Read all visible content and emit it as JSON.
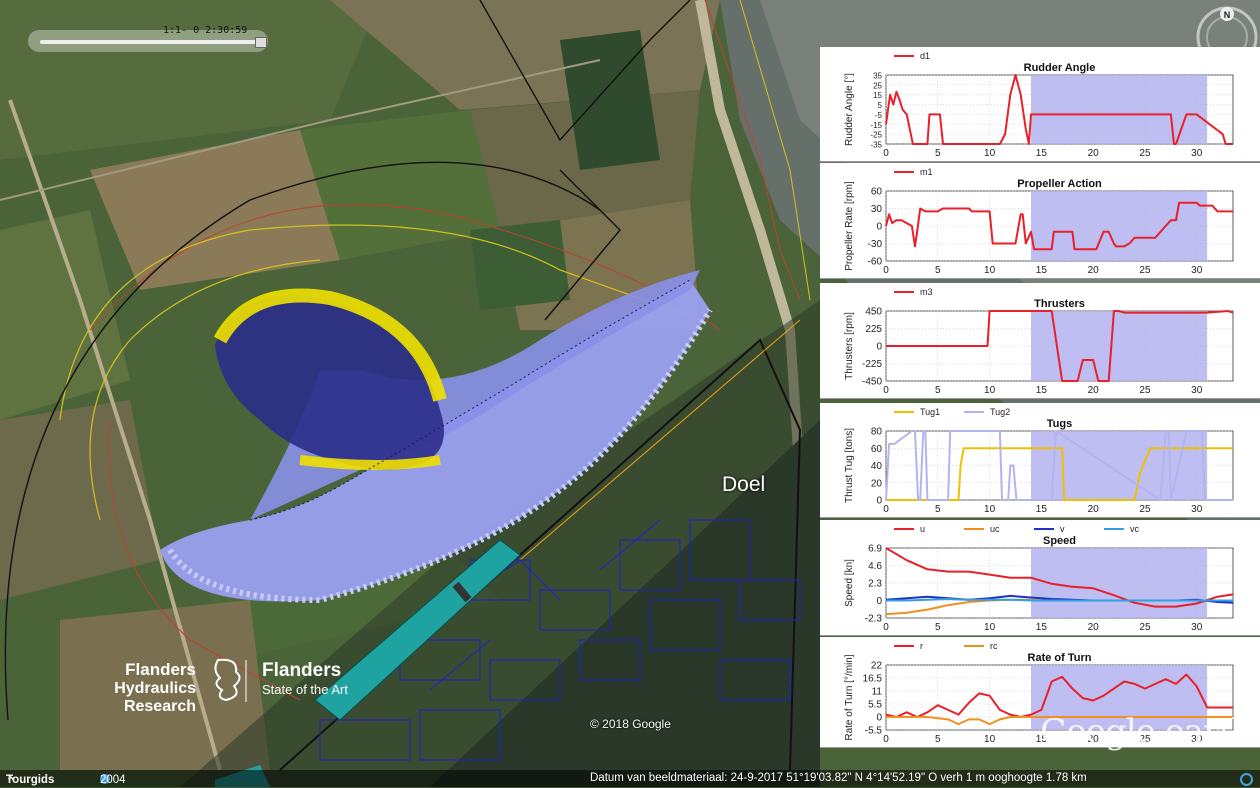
{
  "timeslider": {
    "label": "1:1-  0  2:30:59"
  },
  "compass": {
    "letter": "N"
  },
  "place_label": "Doel",
  "copyright": "© 2018 Google",
  "watermark": "Google earth",
  "logo": {
    "fhr_line1": "Flanders",
    "fhr_line2": "Hydraulics Research",
    "gov_line1": "Flanders",
    "gov_line2": "State of the Art"
  },
  "bottombar": {
    "tour": "Tourgids",
    "year": "2004",
    "status": "Datum van beeldmateriaal: 24-9-2017    51°19'03.82\" N    4°14'52.19\" O  verh     1 m    ooghoogte   1.78 km"
  },
  "colors": {
    "ship_hull": "#9aa0f0",
    "ship_yellow": "#f0e000",
    "quay": "#1fa3a0",
    "highlight": "#b3b3f0"
  },
  "highlight_range": [
    14,
    31
  ],
  "chart_data": [
    {
      "type": "line",
      "title": "Rudder Angle",
      "ylabel": "Rudder Angle [°]",
      "xlim": [
        0,
        33.5
      ],
      "ylim": [
        -35,
        35
      ],
      "yticks": [
        "35",
        "25",
        "15",
        "5",
        "-5",
        "-15",
        "-25",
        "-35"
      ],
      "ytick_values": [
        35,
        25,
        15,
        5,
        -5,
        -15,
        -25,
        -35
      ],
      "xticks": [
        0,
        5,
        10,
        15,
        20,
        25,
        30
      ],
      "series": [
        {
          "name": "d1",
          "color": "#e8202a",
          "x": [
            0,
            0.4,
            0.7,
            1,
            1.3,
            1.6,
            2,
            2.3,
            2.6,
            3,
            3.5,
            4,
            4.2,
            5.2,
            5.5,
            6,
            10,
            11,
            11.5,
            12,
            12.5,
            13,
            13.5,
            13.8,
            14,
            14.2,
            22,
            27.5,
            27.8,
            28,
            29,
            30,
            32.5,
            32.8,
            33.5
          ],
          "y": [
            -15,
            15,
            5,
            18,
            10,
            0,
            -5,
            -20,
            -35,
            -35,
            -35,
            -35,
            -5,
            -5,
            -35,
            -35,
            -35,
            -35,
            -25,
            15,
            35,
            15,
            -20,
            -35,
            -5,
            -5,
            -5,
            -5,
            -35,
            -35,
            -5,
            -5,
            -25,
            -35,
            -35
          ]
        }
      ]
    },
    {
      "type": "line",
      "title": "Propeller Action",
      "ylabel": "Propeller Rate [rpm]",
      "xlim": [
        0,
        33.5
      ],
      "ylim": [
        -60,
        60
      ],
      "yticks": [
        "60",
        "30",
        "0",
        "-30",
        "-60"
      ],
      "ytick_values": [
        60,
        30,
        0,
        -30,
        -60
      ],
      "xticks": [
        0,
        5,
        10,
        15,
        20,
        25,
        30
      ],
      "series": [
        {
          "name": "m1",
          "color": "#e8202a",
          "x": [
            0,
            0.3,
            0.6,
            1,
            1.5,
            2.5,
            2.8,
            3,
            3.3,
            3.8,
            5,
            5.5,
            6,
            8,
            8.3,
            8.6,
            10,
            10.3,
            11,
            12,
            12.5,
            13,
            13.2,
            13.5,
            14,
            14.3,
            15,
            16,
            16.2,
            18,
            18.2,
            20,
            20.3,
            21,
            21.5,
            22,
            22.2,
            23,
            23.5,
            24,
            25,
            26,
            27,
            27.5,
            28,
            28.3,
            30,
            30.3,
            31.5,
            32,
            33.5
          ],
          "y": [
            0,
            20,
            5,
            10,
            10,
            0,
            -35,
            -10,
            30,
            25,
            25,
            30,
            30,
            30,
            25,
            25,
            25,
            -30,
            -30,
            -30,
            -30,
            20,
            20,
            -30,
            -10,
            -40,
            -40,
            -40,
            -10,
            -10,
            -40,
            -40,
            -40,
            -10,
            -10,
            -30,
            -35,
            -35,
            -30,
            -20,
            -20,
            -20,
            0,
            10,
            10,
            40,
            40,
            35,
            35,
            25,
            25
          ]
        }
      ]
    },
    {
      "type": "line",
      "title": "Thrusters",
      "ylabel": "Thrusters [rpm]",
      "xlim": [
        0,
        33.5
      ],
      "ylim": [
        -450,
        450
      ],
      "yticks": [
        "450",
        "225",
        "0",
        "-225",
        "-450"
      ],
      "ytick_values": [
        450,
        225,
        0,
        -225,
        -450
      ],
      "xticks": [
        0,
        5,
        10,
        15,
        20,
        25,
        30
      ],
      "series": [
        {
          "name": "m3",
          "color": "#e8202a",
          "x": [
            0,
            9.8,
            10,
            16,
            17,
            17.3,
            18.5,
            19,
            20,
            20.5,
            21.5,
            22,
            22.5,
            23,
            31,
            33,
            33.5
          ],
          "y": [
            0,
            0,
            450,
            450,
            -450,
            -450,
            -450,
            -180,
            -180,
            -450,
            -450,
            450,
            450,
            430,
            430,
            450,
            430
          ]
        }
      ]
    },
    {
      "type": "line",
      "title": "Tugs",
      "ylabel": "Thrust Tug [tons]",
      "xlim": [
        0,
        33.5
      ],
      "ylim": [
        0,
        80
      ],
      "yticks": [
        "80",
        "60",
        "40",
        "20",
        "0"
      ],
      "ytick_values": [
        80,
        60,
        40,
        20,
        0
      ],
      "xticks": [
        0,
        5,
        10,
        15,
        20,
        25,
        30
      ],
      "series": [
        {
          "name": "Tug1",
          "color": "#f0c000",
          "x": [
            0,
            3.8,
            3.8,
            7,
            7.2,
            7.5,
            17,
            17.2,
            24,
            24.5,
            25.5,
            33.5
          ],
          "y": [
            0,
            0,
            0,
            0,
            40,
            60,
            60,
            0,
            0,
            30,
            60,
            60
          ]
        },
        {
          "name": "Tug2",
          "color": "#b3b3f0",
          "x": [
            0,
            0.3,
            0.8,
            2.5,
            2.8,
            3.1,
            3.3,
            3.6,
            3.8,
            4,
            6,
            6.2,
            7,
            7.2,
            11,
            11.2,
            11.8,
            12,
            12.3,
            12.6,
            16,
            16.4,
            26.5,
            27,
            27.3,
            27.5,
            29,
            29.5,
            30.5,
            30.8,
            31,
            33.5
          ],
          "y": [
            0,
            65,
            65,
            80,
            80,
            0,
            0,
            80,
            80,
            0,
            0,
            80,
            80,
            80,
            80,
            0,
            0,
            40,
            40,
            0,
            0,
            80,
            0,
            80,
            80,
            0,
            80,
            80,
            80,
            0,
            0,
            0
          ]
        }
      ]
    },
    {
      "type": "line",
      "title": "Speed",
      "ylabel": "Speed [kn]",
      "xlim": [
        0,
        33.5
      ],
      "ylim": [
        -2.3,
        6.9
      ],
      "yticks": [
        "6.9",
        "4.6",
        "2.3",
        "0",
        "-2.3"
      ],
      "ytick_values": [
        6.9,
        4.6,
        2.3,
        0,
        -2.3
      ],
      "xticks": [
        0,
        5,
        10,
        15,
        20,
        25,
        30
      ],
      "series": [
        {
          "name": "u",
          "color": "#e8202a",
          "x": [
            0,
            2,
            4,
            6,
            8,
            10,
            12,
            14,
            16,
            18,
            20,
            22,
            24,
            26,
            28,
            30,
            32,
            33.5
          ],
          "y": [
            6.9,
            5.3,
            4.1,
            3.8,
            3.8,
            3.4,
            3,
            3,
            2.2,
            1.8,
            1.6,
            0.7,
            -0.3,
            -0.8,
            -0.8,
            -0.4,
            0.5,
            0.8
          ]
        },
        {
          "name": "uc",
          "color": "#f09020",
          "x": [
            0,
            2,
            4,
            6,
            8,
            10,
            12,
            14,
            16,
            18,
            20,
            22,
            24,
            26,
            28,
            30,
            32,
            33.5
          ],
          "y": [
            -1.8,
            -1.6,
            -1.2,
            -0.6,
            -0.2,
            0,
            0.1,
            0.1,
            0.1,
            0,
            0,
            0,
            0,
            0,
            0,
            0,
            0,
            0
          ]
        },
        {
          "name": "v",
          "color": "#2030c8",
          "x": [
            0,
            2,
            4,
            6,
            8,
            10,
            12,
            14,
            16,
            18,
            20,
            22,
            24,
            26,
            28,
            30,
            32,
            33.5
          ],
          "y": [
            0.1,
            0.3,
            0.5,
            0.3,
            0.1,
            0.3,
            0.6,
            0.4,
            0.2,
            0.1,
            0,
            0,
            0,
            0,
            0,
            0.1,
            -0.2,
            -0.3
          ]
        },
        {
          "name": "vc",
          "color": "#30a0e0",
          "x": [
            0,
            2,
            4,
            6,
            8,
            10,
            12,
            14,
            16,
            18,
            20,
            22,
            24,
            26,
            28,
            30,
            32,
            33.5
          ],
          "y": [
            0,
            0,
            0.1,
            0.2,
            0.1,
            0.1,
            0.1,
            0,
            0,
            0,
            0,
            0,
            0,
            0,
            0,
            0,
            0,
            0
          ]
        }
      ]
    },
    {
      "type": "line",
      "title": "Rate of Turn",
      "ylabel": "Rate of Turn [°/min]",
      "xlim": [
        0,
        33.5
      ],
      "ylim": [
        -5.5,
        22
      ],
      "yticks": [
        "22",
        "16.5",
        "11",
        "5.5",
        "0",
        "-5.5"
      ],
      "ytick_values": [
        22,
        16.5,
        11,
        5.5,
        0,
        -5.5
      ],
      "xticks": [
        0,
        5,
        10,
        15,
        20,
        25,
        30
      ],
      "series": [
        {
          "name": "r",
          "color": "#e8202a",
          "x": [
            0,
            1,
            2,
            3,
            4,
            5,
            6,
            7,
            8,
            9,
            10,
            11,
            12,
            13,
            14,
            15,
            16,
            17,
            18,
            19,
            20,
            21,
            22,
            23,
            24,
            25,
            26,
            27,
            28,
            29,
            30,
            31,
            32,
            33.5
          ],
          "y": [
            1,
            0,
            2,
            0,
            2,
            5,
            3,
            1,
            6,
            10,
            9,
            3,
            1,
            0,
            1,
            3,
            15,
            17,
            12,
            8,
            7,
            9,
            12,
            15,
            14,
            12,
            14,
            16,
            14,
            18,
            13,
            4,
            4,
            4
          ]
        },
        {
          "name": "rc",
          "color": "#f09020",
          "x": [
            0,
            2,
            4,
            6,
            7,
            8,
            9,
            10,
            11,
            12,
            13,
            14,
            33.5
          ],
          "y": [
            0,
            0,
            0,
            -1,
            -3,
            -1,
            -1,
            -3,
            -1,
            0,
            0,
            0,
            0
          ]
        }
      ]
    }
  ]
}
